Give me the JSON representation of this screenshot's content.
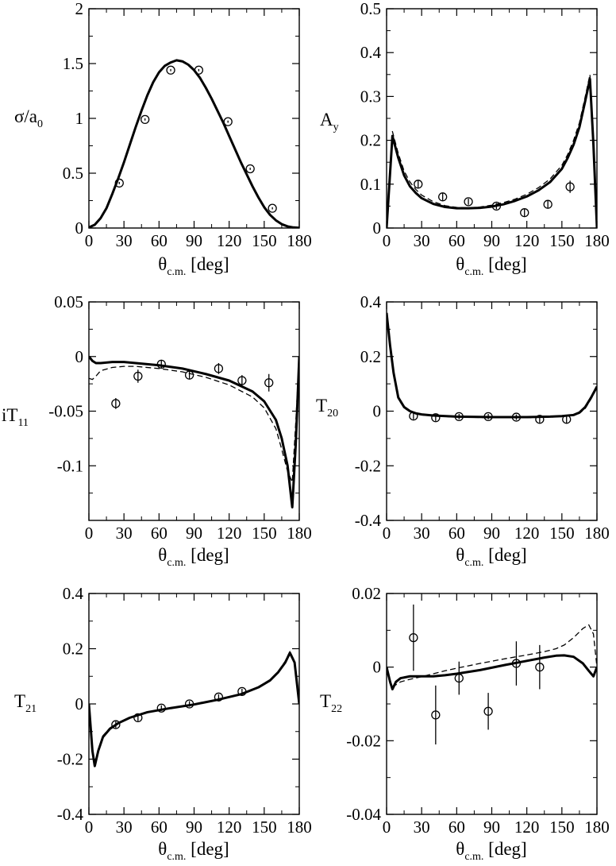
{
  "chart_data": [
    {
      "id": "sigma",
      "type": "line",
      "ylabel": {
        "main": "σ/a",
        "sub": "0"
      },
      "xlabel": {
        "main": "θ",
        "sub": "c.m.",
        "tail": " [deg]"
      },
      "xlim": [
        0,
        180
      ],
      "ylim": [
        0,
        2
      ],
      "xticks": [
        0,
        30,
        60,
        90,
        120,
        150,
        180
      ],
      "yticks": [
        0,
        0.5,
        1,
        1.5,
        2
      ],
      "ytick_labels": [
        "0",
        "0.5",
        "1",
        "1.5",
        "2"
      ],
      "series": [
        {
          "name": "solid",
          "style": "solid",
          "x": [
            0,
            5,
            10,
            15,
            20,
            25,
            30,
            35,
            40,
            45,
            50,
            55,
            60,
            65,
            70,
            75,
            80,
            85,
            90,
            95,
            100,
            105,
            110,
            115,
            120,
            125,
            130,
            135,
            140,
            145,
            150,
            155,
            160,
            165,
            170,
            175,
            180
          ],
          "y": [
            0.005,
            0.03,
            0.09,
            0.18,
            0.31,
            0.45,
            0.6,
            0.76,
            0.92,
            1.07,
            1.21,
            1.33,
            1.42,
            1.48,
            1.51,
            1.53,
            1.52,
            1.49,
            1.44,
            1.37,
            1.28,
            1.18,
            1.07,
            0.96,
            0.84,
            0.72,
            0.6,
            0.49,
            0.38,
            0.28,
            0.19,
            0.12,
            0.07,
            0.035,
            0.015,
            0.005,
            0.002
          ]
        }
      ],
      "points": [
        {
          "x": 26,
          "y": 0.41,
          "err": 0.01
        },
        {
          "x": 48,
          "y": 0.99,
          "err": 0.01
        },
        {
          "x": 70,
          "y": 1.44,
          "err": 0.01
        },
        {
          "x": 94,
          "y": 1.44,
          "err": 0.01
        },
        {
          "x": 119,
          "y": 0.97,
          "err": 0.01
        },
        {
          "x": 138,
          "y": 0.54,
          "err": 0.01
        },
        {
          "x": 157,
          "y": 0.18,
          "err": 0.01
        }
      ]
    },
    {
      "id": "ay",
      "type": "line",
      "ylabel": {
        "main": "A",
        "sub": "y"
      },
      "xlabel": {
        "main": "θ",
        "sub": "c.m.",
        "tail": " [deg]"
      },
      "xlim": [
        0,
        180
      ],
      "ylim": [
        0,
        0.5
      ],
      "xticks": [
        0,
        30,
        60,
        90,
        120,
        150,
        180
      ],
      "yticks": [
        0,
        0.1,
        0.2,
        0.3,
        0.4,
        0.5
      ],
      "ytick_labels": [
        "0",
        "0.1",
        "0.2",
        "0.3",
        "0.4",
        "0.5"
      ],
      "series": [
        {
          "name": "solid",
          "style": "solid",
          "x": [
            0,
            5,
            10,
            15,
            20,
            25,
            30,
            40,
            50,
            60,
            70,
            80,
            90,
            100,
            110,
            120,
            130,
            140,
            150,
            155,
            160,
            165,
            170,
            174,
            177,
            180
          ],
          "y": [
            0,
            0.21,
            0.16,
            0.12,
            0.095,
            0.08,
            0.068,
            0.055,
            0.048,
            0.045,
            0.045,
            0.046,
            0.049,
            0.054,
            0.062,
            0.072,
            0.086,
            0.105,
            0.135,
            0.16,
            0.19,
            0.23,
            0.29,
            0.34,
            0.19,
            0
          ]
        },
        {
          "name": "dashed",
          "style": "dashed",
          "x": [
            0,
            5,
            10,
            15,
            20,
            25,
            30,
            40,
            50,
            60,
            70,
            80,
            90,
            100,
            110,
            120,
            130,
            140,
            150,
            155,
            160,
            165,
            170,
            174,
            177,
            180
          ],
          "y": [
            0,
            0.22,
            0.17,
            0.13,
            0.105,
            0.088,
            0.075,
            0.06,
            0.051,
            0.047,
            0.046,
            0.048,
            0.052,
            0.058,
            0.066,
            0.077,
            0.092,
            0.112,
            0.143,
            0.168,
            0.2,
            0.24,
            0.3,
            0.35,
            0.19,
            0
          ]
        }
      ],
      "points": [
        {
          "x": 27,
          "y": 0.1,
          "err": 0.008
        },
        {
          "x": 48,
          "y": 0.071,
          "err": 0.008
        },
        {
          "x": 70,
          "y": 0.06,
          "err": 0.007
        },
        {
          "x": 94,
          "y": 0.05,
          "err": 0.007
        },
        {
          "x": 118,
          "y": 0.035,
          "err": 0.008
        },
        {
          "x": 138,
          "y": 0.054,
          "err": 0.008
        },
        {
          "x": 157,
          "y": 0.094,
          "err": 0.014
        }
      ]
    },
    {
      "id": "it11",
      "type": "line",
      "ylabel": {
        "main": "iT",
        "sub": "11"
      },
      "xlabel": {
        "main": "θ",
        "sub": "c.m.",
        "tail": " [deg]"
      },
      "xlim": [
        0,
        180
      ],
      "ylim": [
        -0.15,
        0.05
      ],
      "xticks": [
        0,
        30,
        60,
        90,
        120,
        150,
        180
      ],
      "yticks": [
        -0.1,
        -0.05,
        0,
        0.05
      ],
      "ytick_labels": [
        "-0.1",
        "-0.05",
        "0",
        "0.05"
      ],
      "series": [
        {
          "name": "solid",
          "style": "solid",
          "x": [
            0,
            3,
            6,
            10,
            20,
            30,
            40,
            60,
            80,
            100,
            120,
            140,
            150,
            160,
            165,
            170,
            174,
            177,
            180
          ],
          "y": [
            0,
            -0.004,
            -0.006,
            -0.006,
            -0.005,
            -0.005,
            -0.006,
            -0.008,
            -0.011,
            -0.016,
            -0.022,
            -0.032,
            -0.041,
            -0.058,
            -0.075,
            -0.1,
            -0.138,
            -0.08,
            0
          ]
        },
        {
          "name": "dashed",
          "style": "dashed",
          "x": [
            0,
            3,
            6,
            10,
            20,
            30,
            40,
            60,
            80,
            100,
            120,
            140,
            150,
            160,
            165,
            170,
            174,
            177,
            180
          ],
          "y": [
            -0.02,
            -0.021,
            -0.018,
            -0.013,
            -0.01,
            -0.009,
            -0.009,
            -0.011,
            -0.014,
            -0.019,
            -0.026,
            -0.037,
            -0.047,
            -0.066,
            -0.085,
            -0.105,
            -0.115,
            -0.06,
            0
          ]
        }
      ],
      "points": [
        {
          "x": 23,
          "y": -0.043,
          "err": 0.005
        },
        {
          "x": 42,
          "y": -0.018,
          "err": 0.006
        },
        {
          "x": 62,
          "y": -0.007,
          "err": 0.004
        },
        {
          "x": 86,
          "y": -0.017,
          "err": 0.004
        },
        {
          "x": 111,
          "y": -0.011,
          "err": 0.005
        },
        {
          "x": 131,
          "y": -0.022,
          "err": 0.005
        },
        {
          "x": 154,
          "y": -0.024,
          "err": 0.008
        }
      ]
    },
    {
      "id": "t20",
      "type": "line",
      "ylabel": {
        "main": "T",
        "sub": "20"
      },
      "xlabel": {
        "main": "θ",
        "sub": "c.m.",
        "tail": " [deg]"
      },
      "xlim": [
        0,
        180
      ],
      "ylim": [
        -0.4,
        0.4
      ],
      "xticks": [
        0,
        30,
        60,
        90,
        120,
        150,
        180
      ],
      "yticks": [
        -0.4,
        -0.2,
        0,
        0.2,
        0.4
      ],
      "ytick_labels": [
        "-0.4",
        "-0.2",
        "0",
        "0.2",
        "0.4"
      ],
      "series": [
        {
          "name": "solid",
          "style": "solid",
          "x": [
            0,
            3,
            6,
            10,
            15,
            20,
            25,
            30,
            40,
            60,
            90,
            120,
            140,
            150,
            160,
            165,
            170,
            175,
            180
          ],
          "y": [
            0.36,
            0.24,
            0.14,
            0.05,
            0.015,
            0.0,
            -0.008,
            -0.012,
            -0.016,
            -0.02,
            -0.022,
            -0.022,
            -0.02,
            -0.018,
            -0.014,
            -0.005,
            0.015,
            0.05,
            0.09
          ]
        },
        {
          "name": "dashed",
          "style": "dashed",
          "x": [
            0,
            3,
            6,
            10,
            15,
            20,
            25,
            30,
            40,
            60,
            90,
            120,
            140,
            150,
            160,
            165,
            170,
            175,
            180
          ],
          "y": [
            0.35,
            0.23,
            0.13,
            0.045,
            0.012,
            -0.002,
            -0.01,
            -0.014,
            -0.018,
            -0.022,
            -0.024,
            -0.024,
            -0.022,
            -0.02,
            -0.016,
            -0.008,
            0.01,
            0.045,
            0.085
          ]
        }
      ],
      "points": [
        {
          "x": 23,
          "y": -0.018,
          "err": 0.012
        },
        {
          "x": 42,
          "y": -0.024,
          "err": 0.012
        },
        {
          "x": 62,
          "y": -0.02,
          "err": 0.01
        },
        {
          "x": 87,
          "y": -0.02,
          "err": 0.01
        },
        {
          "x": 111,
          "y": -0.022,
          "err": 0.01
        },
        {
          "x": 131,
          "y": -0.03,
          "err": 0.012
        },
        {
          "x": 154,
          "y": -0.03,
          "err": 0.014
        }
      ]
    },
    {
      "id": "t21",
      "type": "line",
      "ylabel": {
        "main": "T",
        "sub": "21"
      },
      "xlabel": {
        "main": "θ",
        "sub": "c.m.",
        "tail": " [deg]"
      },
      "xlim": [
        0,
        180
      ],
      "ylim": [
        -0.4,
        0.4
      ],
      "xticks": [
        0,
        30,
        60,
        90,
        120,
        150,
        180
      ],
      "yticks": [
        -0.4,
        -0.2,
        0,
        0.2,
        0.4
      ],
      "ytick_labels": [
        "-0.4",
        "-0.2",
        "0",
        "0.2",
        "0.4"
      ],
      "series": [
        {
          "name": "solid",
          "style": "solid",
          "x": [
            0,
            3,
            5,
            8,
            12,
            18,
            25,
            35,
            50,
            70,
            90,
            110,
            130,
            145,
            155,
            162,
            168,
            172,
            176,
            180
          ],
          "y": [
            0,
            -0.17,
            -0.225,
            -0.17,
            -0.12,
            -0.09,
            -0.07,
            -0.05,
            -0.03,
            -0.015,
            -0.002,
            0.015,
            0.035,
            0.06,
            0.085,
            0.115,
            0.15,
            0.185,
            0.15,
            0
          ]
        },
        {
          "name": "dashed",
          "style": "dashed",
          "x": [
            0,
            3,
            5,
            8,
            12,
            18,
            25,
            35,
            50,
            70,
            90,
            110,
            130,
            145,
            155,
            162,
            168,
            172,
            176,
            180
          ],
          "y": [
            0,
            -0.16,
            -0.215,
            -0.165,
            -0.115,
            -0.087,
            -0.068,
            -0.049,
            -0.029,
            -0.014,
            -0.001,
            0.016,
            0.036,
            0.062,
            0.088,
            0.118,
            0.155,
            0.19,
            0.155,
            0
          ]
        }
      ],
      "points": [
        {
          "x": 23,
          "y": -0.075,
          "err": 0.012
        },
        {
          "x": 42,
          "y": -0.05,
          "err": 0.012
        },
        {
          "x": 62,
          "y": -0.015,
          "err": 0.01
        },
        {
          "x": 86,
          "y": 0.0,
          "err": 0.01
        },
        {
          "x": 111,
          "y": 0.025,
          "err": 0.01
        },
        {
          "x": 131,
          "y": 0.045,
          "err": 0.01
        }
      ]
    },
    {
      "id": "t22",
      "type": "line",
      "ylabel": {
        "main": "T",
        "sub": "22"
      },
      "xlabel": {
        "main": "θ",
        "sub": "c.m.",
        "tail": " [deg]"
      },
      "xlim": [
        0,
        180
      ],
      "ylim": [
        -0.04,
        0.02
      ],
      "xticks": [
        0,
        30,
        60,
        90,
        120,
        150,
        180
      ],
      "yticks": [
        -0.04,
        -0.02,
        0,
        0.02
      ],
      "ytick_labels": [
        "-0.04",
        "-0.02",
        "0",
        "0.02"
      ],
      "series": [
        {
          "name": "solid",
          "style": "solid",
          "x": [
            0,
            3,
            5,
            8,
            12,
            20,
            30,
            40,
            50,
            60,
            80,
            100,
            120,
            135,
            145,
            152,
            160,
            168,
            173,
            177,
            180
          ],
          "y": [
            0,
            -0.004,
            -0.006,
            -0.004,
            -0.003,
            -0.0025,
            -0.0025,
            -0.0025,
            -0.0022,
            -0.0018,
            -0.0008,
            0.0005,
            0.0017,
            0.0026,
            0.0031,
            0.0032,
            0.0028,
            0.001,
            -0.001,
            -0.0025,
            0
          ]
        },
        {
          "name": "dashed",
          "style": "dashed",
          "x": [
            0,
            3,
            5,
            8,
            12,
            20,
            30,
            40,
            50,
            60,
            80,
            100,
            120,
            135,
            145,
            152,
            160,
            168,
            173,
            177,
            180
          ],
          "y": [
            -0.001,
            -0.0045,
            -0.0055,
            -0.0048,
            -0.004,
            -0.0033,
            -0.0026,
            -0.0018,
            -0.001,
            -0.0003,
            0.001,
            0.0022,
            0.0033,
            0.0042,
            0.005,
            0.006,
            0.008,
            0.0105,
            0.0115,
            0.009,
            0
          ]
        }
      ],
      "points": [
        {
          "x": 23,
          "y": 0.008,
          "err": 0.009
        },
        {
          "x": 42,
          "y": -0.013,
          "err": 0.008
        },
        {
          "x": 62,
          "y": -0.003,
          "err": 0.0045
        },
        {
          "x": 87,
          "y": -0.012,
          "err": 0.005
        },
        {
          "x": 111,
          "y": 0.001,
          "err": 0.006
        },
        {
          "x": 131,
          "y": 0.0,
          "err": 0.006
        }
      ]
    }
  ]
}
